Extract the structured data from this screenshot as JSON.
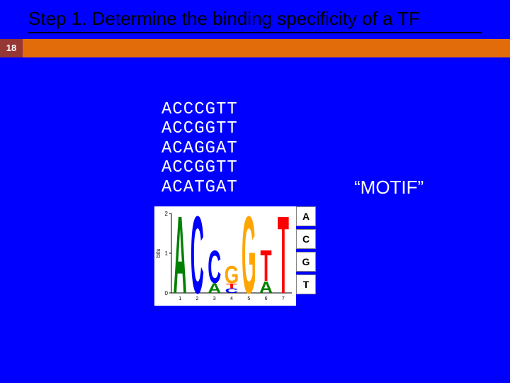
{
  "slide": {
    "title": "Step 1. Determine the binding specificity of a TF",
    "number": "18",
    "background_color": "#0000fe",
    "accent_bar_color": "#e36c0a",
    "number_badge_color": "#953735"
  },
  "sequences": {
    "lines": [
      "ACCCGTT",
      "ACCGGTT",
      "ACAGGAT",
      "ACCGGTT",
      "ACATGAT"
    ],
    "font": "Courier New",
    "fontsize": 24,
    "color": "#ffffff"
  },
  "motif_label": {
    "text": "“MOTIF”",
    "fontsize": 26,
    "color": "#ffffff"
  },
  "base_legend": {
    "bases": [
      "A",
      "C",
      "G",
      "T"
    ],
    "cell_bg": "#ffffff",
    "cell_border": "#888888",
    "text_color": "#000000"
  },
  "sequence_logo": {
    "type": "sequence-logo",
    "positions": 7,
    "ylabel": "bits",
    "ylim": [
      0,
      2
    ],
    "background_color": "#ffffff",
    "axis_color": "#000000",
    "base_colors": {
      "A": "#008000",
      "C": "#0000ff",
      "G": "#ffa500",
      "T": "#ff0000"
    },
    "columns": [
      {
        "stack": [
          {
            "base": "A",
            "height": 2.0
          }
        ]
      },
      {
        "stack": [
          {
            "base": "C",
            "height": 2.0
          }
        ]
      },
      {
        "stack": [
          {
            "base": "A",
            "height": 0.25
          },
          {
            "base": "C",
            "height": 0.85
          }
        ]
      },
      {
        "stack": [
          {
            "base": "C",
            "height": 0.12
          },
          {
            "base": "T",
            "height": 0.12
          },
          {
            "base": "G",
            "height": 0.45
          }
        ]
      },
      {
        "stack": [
          {
            "base": "G",
            "height": 2.0
          }
        ]
      },
      {
        "stack": [
          {
            "base": "A",
            "height": 0.3
          },
          {
            "base": "T",
            "height": 0.8
          }
        ]
      },
      {
        "stack": [
          {
            "base": "T",
            "height": 2.0
          }
        ]
      }
    ]
  }
}
